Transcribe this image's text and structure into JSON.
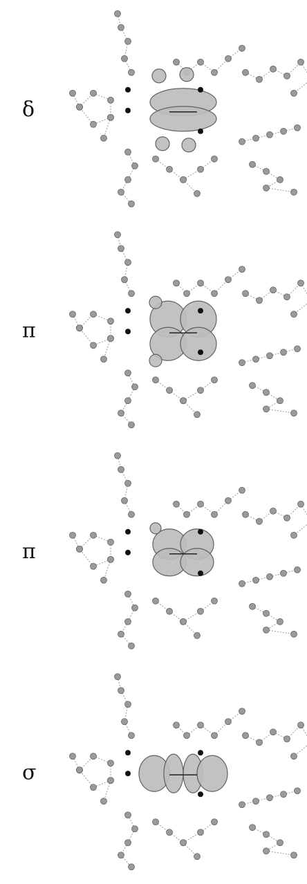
{
  "panels": [
    {
      "label": "δ"
    },
    {
      "label": "π"
    },
    {
      "label": "π"
    },
    {
      "label": "σ"
    }
  ]
}
